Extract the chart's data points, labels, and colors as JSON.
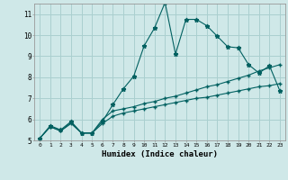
{
  "title": "",
  "xlabel": "Humidex (Indice chaleur)",
  "ylabel": "",
  "x_min": -0.5,
  "x_max": 23.5,
  "y_min": 5,
  "y_max": 11.5,
  "bg_color": "#cfe8e8",
  "grid_color": "#aacfcf",
  "line_color": "#006060",
  "line1_x": [
    0,
    1,
    2,
    3,
    4,
    5,
    6,
    7,
    8,
    9,
    10,
    11,
    12,
    13,
    14,
    15,
    16,
    17,
    18,
    19,
    20,
    21,
    22,
    23
  ],
  "line1_y": [
    5.1,
    5.7,
    5.5,
    5.9,
    5.35,
    5.35,
    5.9,
    6.7,
    7.45,
    8.05,
    9.5,
    10.35,
    11.55,
    9.1,
    10.75,
    10.75,
    10.45,
    9.95,
    9.45,
    9.4,
    8.6,
    8.2,
    8.55,
    7.35
  ],
  "line2_x": [
    0,
    1,
    2,
    3,
    4,
    5,
    6,
    7,
    8,
    9,
    10,
    11,
    12,
    13,
    14,
    15,
    16,
    17,
    18,
    19,
    20,
    21,
    22,
    23
  ],
  "line2_y": [
    5.1,
    5.65,
    5.45,
    5.85,
    5.35,
    5.35,
    6.0,
    6.4,
    6.5,
    6.6,
    6.75,
    6.85,
    7.0,
    7.1,
    7.25,
    7.4,
    7.55,
    7.65,
    7.8,
    7.95,
    8.1,
    8.3,
    8.45,
    8.6
  ],
  "line3_x": [
    0,
    1,
    2,
    3,
    4,
    5,
    6,
    7,
    8,
    9,
    10,
    11,
    12,
    13,
    14,
    15,
    16,
    17,
    18,
    19,
    20,
    21,
    22,
    23
  ],
  "line3_y": [
    5.1,
    5.65,
    5.45,
    5.8,
    5.35,
    5.35,
    5.8,
    6.15,
    6.3,
    6.4,
    6.5,
    6.6,
    6.7,
    6.8,
    6.9,
    7.0,
    7.05,
    7.15,
    7.25,
    7.35,
    7.45,
    7.55,
    7.6,
    7.7
  ]
}
